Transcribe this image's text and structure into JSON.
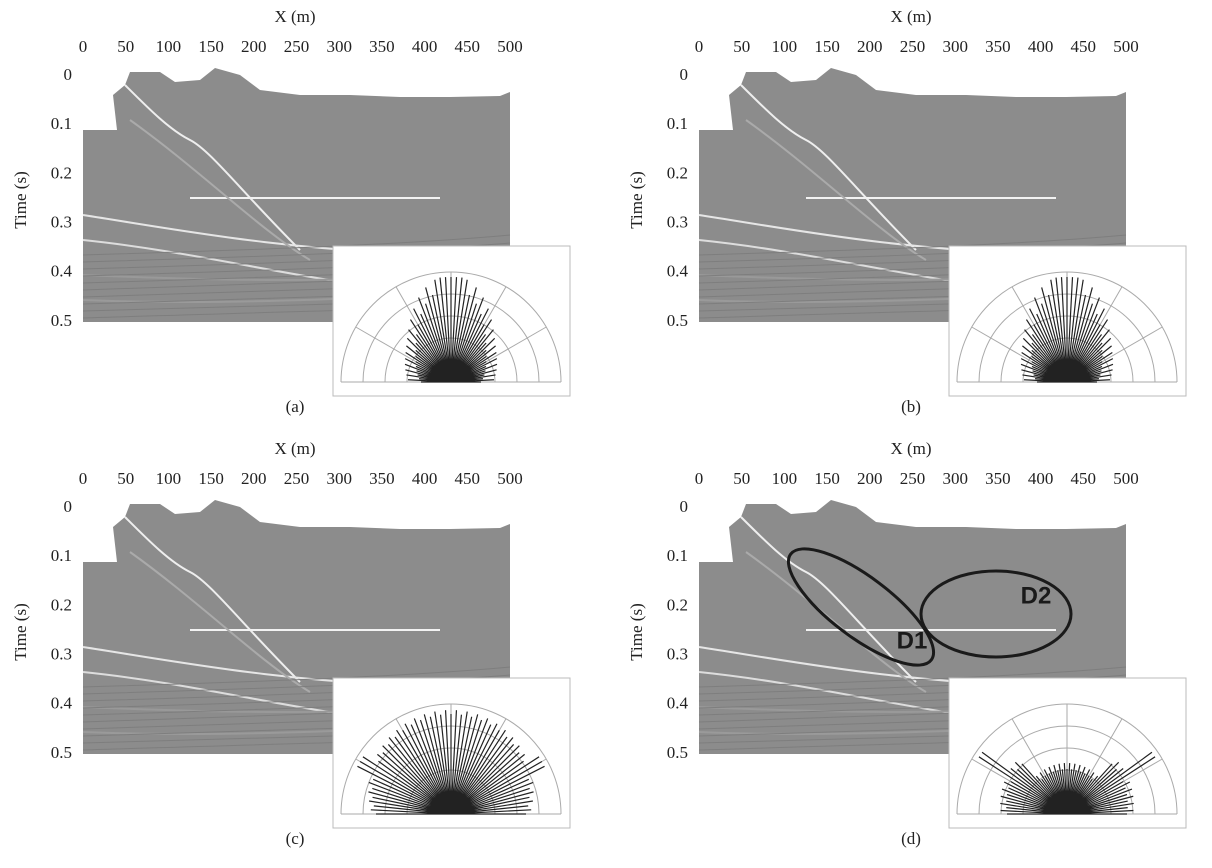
{
  "panels": [
    {
      "x_label": "X (m)",
      "y_label": "Time (s)",
      "x_ticks": [
        0,
        50,
        100,
        150,
        200,
        250,
        300,
        350,
        400,
        450,
        500
      ],
      "y_ticks": [
        0,
        0.1,
        0.2,
        0.3,
        0.4,
        0.5
      ],
      "caption": "(a)"
    },
    {
      "x_label": "X (m)",
      "y_label": "Time (s)",
      "x_ticks": [
        0,
        50,
        100,
        150,
        200,
        250,
        300,
        350,
        400,
        450,
        500
      ],
      "y_ticks": [
        0,
        0.1,
        0.2,
        0.3,
        0.4,
        0.5
      ],
      "caption": "(b)"
    },
    {
      "x_label": "X (m)",
      "y_label": "Time (s)",
      "x_ticks": [
        0,
        50,
        100,
        150,
        200,
        250,
        300,
        350,
        400,
        450,
        500
      ],
      "y_ticks": [
        0,
        0.1,
        0.2,
        0.3,
        0.4,
        0.5
      ],
      "caption": "(c)"
    },
    {
      "x_label": "X (m)",
      "y_label": "Time (s)",
      "x_ticks": [
        0,
        50,
        100,
        150,
        200,
        250,
        300,
        350,
        400,
        450,
        500
      ],
      "y_ticks": [
        0,
        0.1,
        0.2,
        0.3,
        0.4,
        0.5
      ],
      "caption": "(d)",
      "annotations": [
        "D1",
        "D2"
      ]
    }
  ]
}
